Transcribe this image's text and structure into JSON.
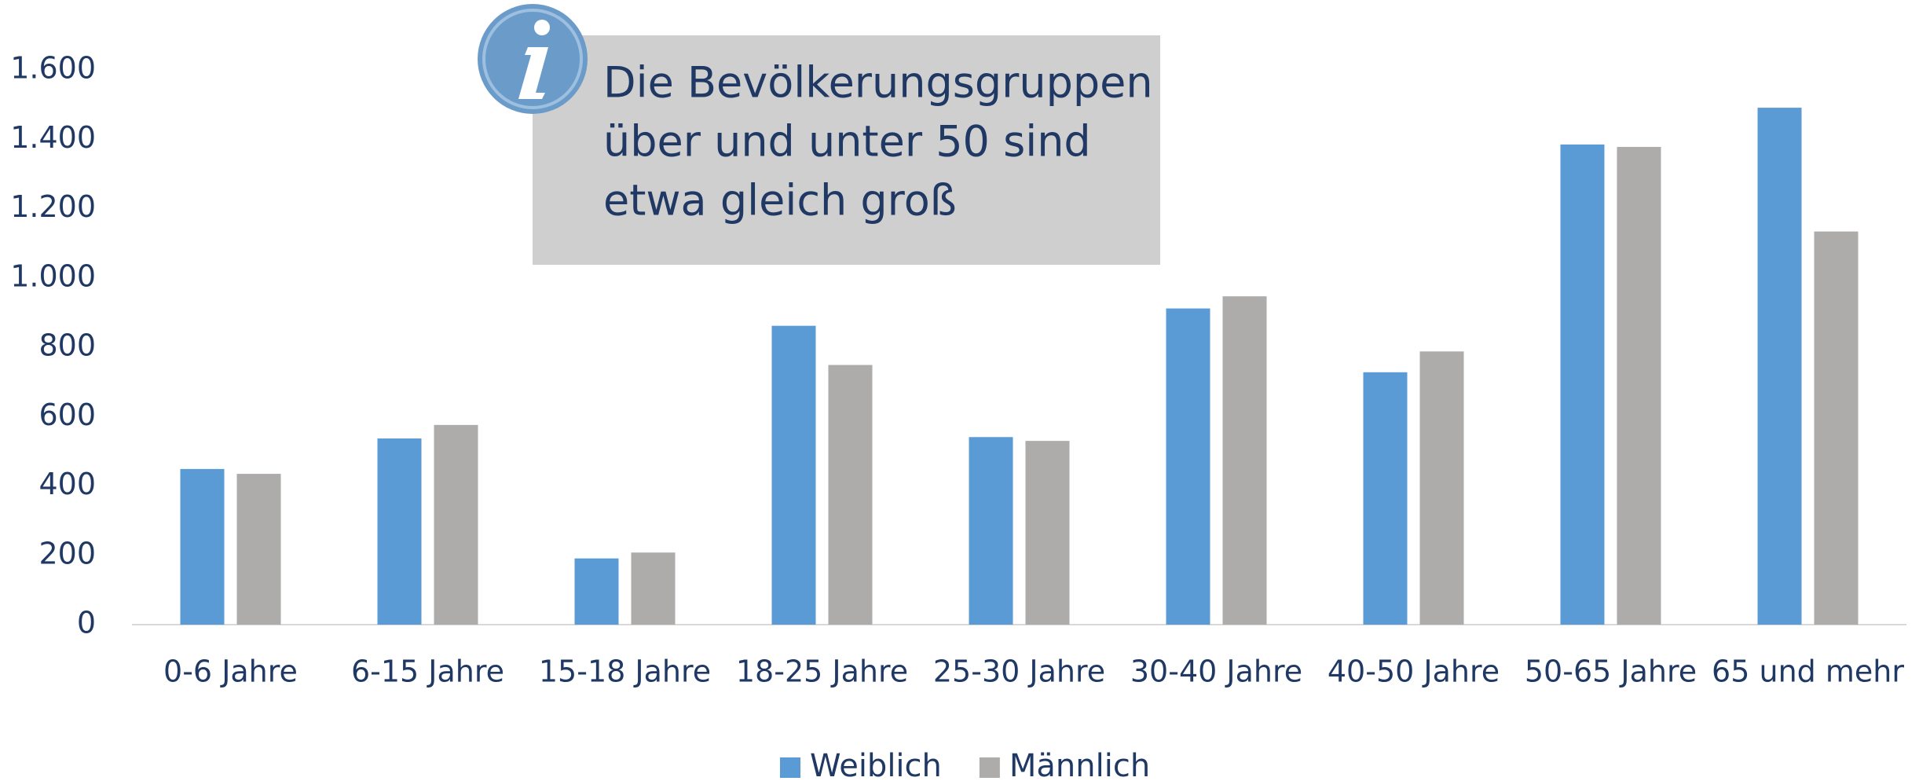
{
  "chart_data": {
    "type": "bar",
    "categories": [
      "0-6 Jahre",
      "6-15 Jahre",
      "15-18 Jahre",
      "18-25 Jahre",
      "25-30 Jahre",
      "30-40 Jahre",
      "40-50 Jahre",
      "50-65 Jahre",
      "65 und mehr"
    ],
    "series": [
      {
        "name": "Weiblich",
        "color": "#5b9bd5",
        "values": [
          449,
          537,
          191,
          862,
          541,
          912,
          728,
          1385,
          1491
        ]
      },
      {
        "name": "Männlich",
        "color": "#aeabab",
        "values": [
          435,
          576,
          208,
          749,
          530,
          947,
          788,
          1378,
          1134
        ]
      }
    ],
    "ylim": [
      0,
      1600
    ],
    "yticks": [
      0,
      {
        "value": 200,
        "label": "200"
      },
      {
        "value": 400,
        "label": "400"
      },
      {
        "value": 600,
        "label": "600"
      },
      {
        "value": 800,
        "label": "800"
      },
      {
        "value": 1000,
        "label": "1.000"
      },
      {
        "value": 1200,
        "label": "1.200"
      },
      {
        "value": 1400,
        "label": "1.400"
      },
      {
        "value": 1600,
        "label": "1.600"
      }
    ],
    "annotation": [
      "Die Bevölkerungsgruppen",
      "über und unter 50 sind",
      "etwa gleich groß"
    ],
    "legend": "bottom"
  }
}
